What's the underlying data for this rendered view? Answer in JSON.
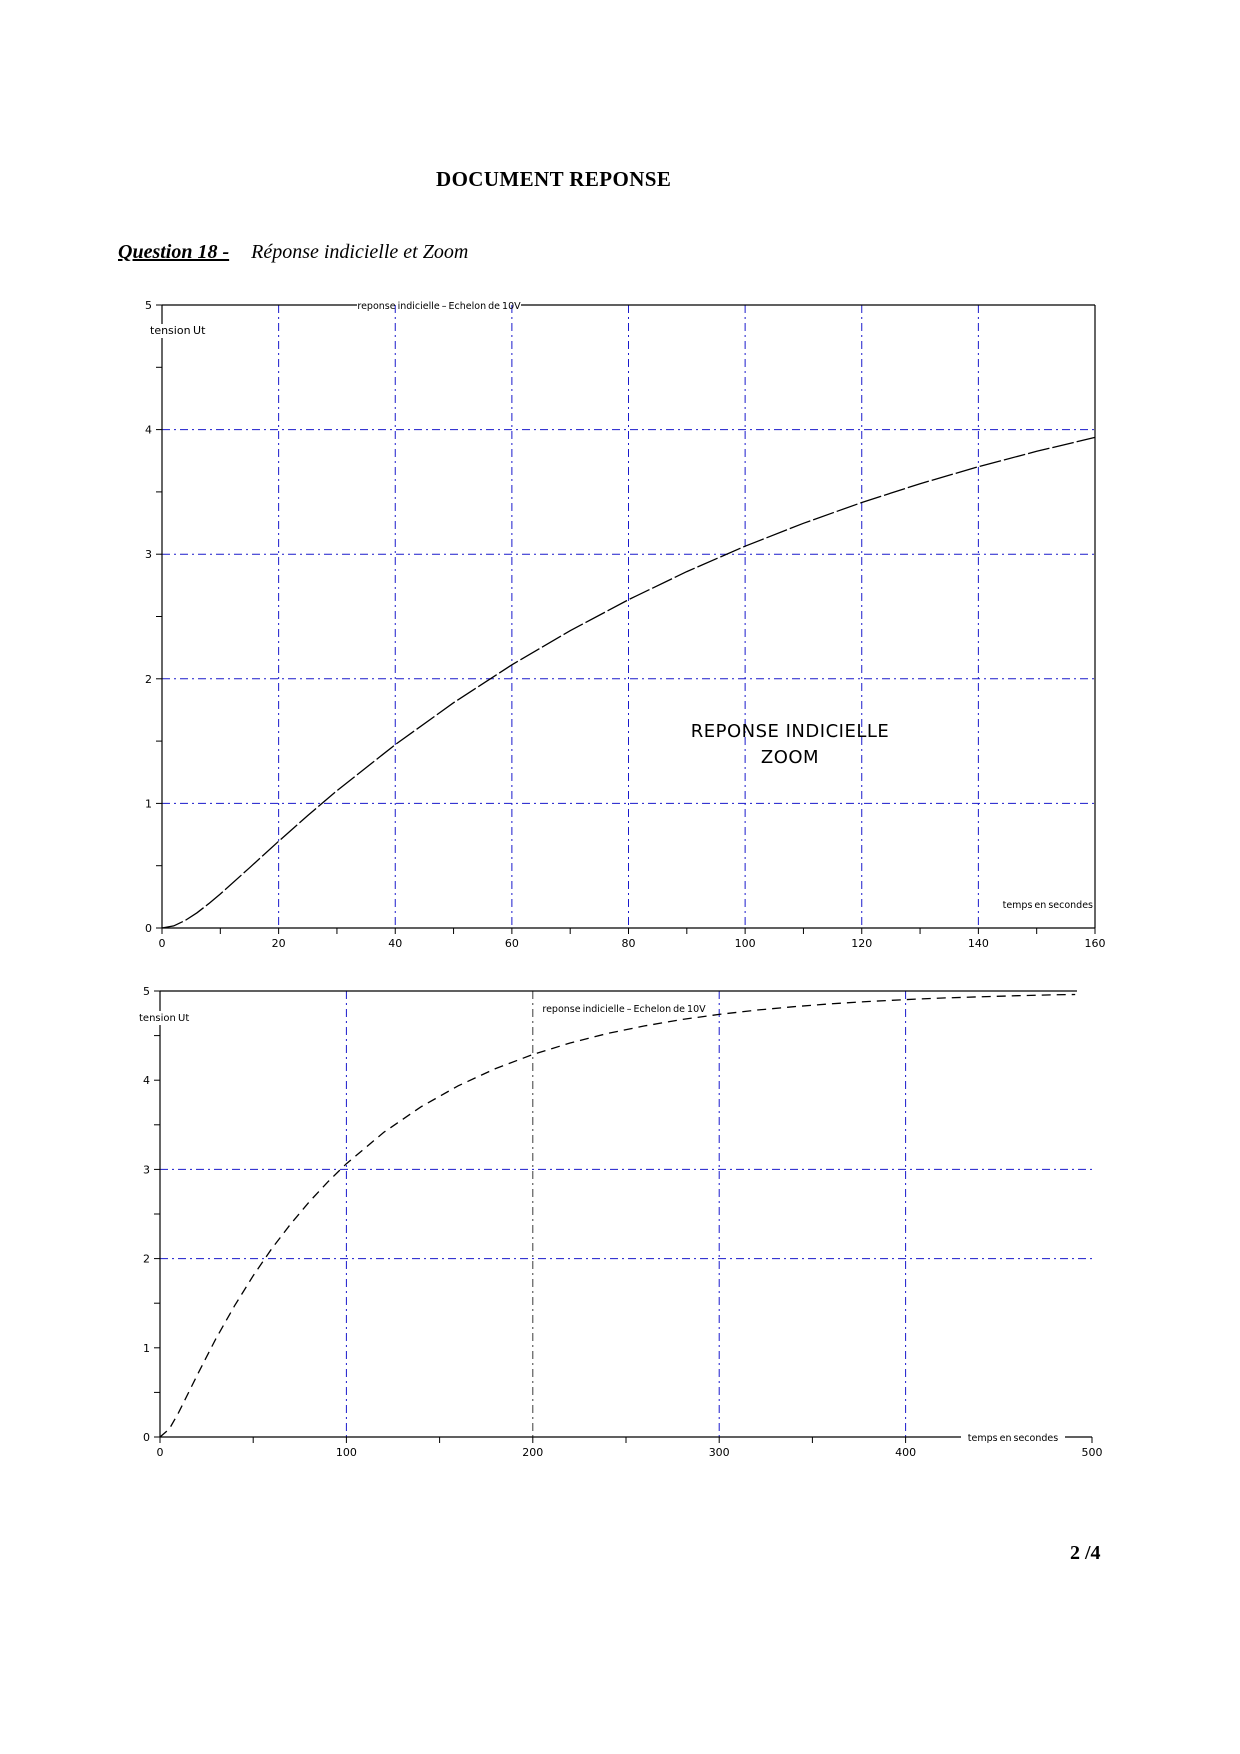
{
  "page": {
    "title": "DOCUMENT REPONSE",
    "question_label": "Question 18 -",
    "question_text": "Réponse indicielle et Zoom",
    "page_number": "2 /4"
  },
  "colors": {
    "grid_blue": "#1a1acc",
    "grid_dark": "#3c3c3c",
    "curve": "#000000"
  },
  "chart_data": [
    {
      "type": "line",
      "title": "reponse indicielle – Echelon de 10V",
      "ylabel": "tension Ut",
      "xlabel": "temps en secondes",
      "annotation_line1": "REPONSE INDICIELLE",
      "annotation_line2": "ZOOM",
      "xlim": [
        0,
        160
      ],
      "ylim": [
        0,
        5
      ],
      "xticks": [
        0,
        20,
        40,
        60,
        80,
        100,
        120,
        140,
        160
      ],
      "yticks": [
        0,
        1,
        2,
        3,
        4,
        5
      ],
      "minor_x_step": 10,
      "minor_y_step": 0.5,
      "grid_x": [
        20,
        40,
        60,
        80,
        100,
        120,
        140
      ],
      "grid_y": [
        1,
        2,
        3,
        4
      ],
      "grid_x_colors": {},
      "series": [
        {
          "name": "Ut",
          "x": [
            0,
            2,
            4,
            6,
            8,
            10,
            15,
            20,
            25,
            30,
            40,
            50,
            60,
            70,
            80,
            90,
            100,
            110,
            120,
            130,
            140,
            150,
            160
          ],
          "y": [
            0,
            0.017,
            0.061,
            0.122,
            0.195,
            0.273,
            0.483,
            0.696,
            0.903,
            1.102,
            1.472,
            1.808,
            2.112,
            2.386,
            2.635,
            2.86,
            3.064,
            3.248,
            3.415,
            3.566,
            3.702,
            3.826,
            3.937
          ]
        }
      ]
    },
    {
      "type": "line",
      "title": "reponse indicielle – Echelon de 10V",
      "ylabel": "tension Ut",
      "xlabel": "temps en secondes",
      "xlim": [
        0,
        500
      ],
      "ylim": [
        0,
        5
      ],
      "xticks": [
        0,
        100,
        200,
        300,
        400,
        500
      ],
      "yticks": [
        0,
        1,
        2,
        3,
        4,
        5
      ],
      "minor_x_step": 50,
      "minor_y_step": 0.5,
      "grid_x": [
        100,
        200,
        300,
        400
      ],
      "grid_y": [
        2,
        3
      ],
      "grid_x_colors": {
        "200": "dark"
      },
      "series": [
        {
          "name": "Ut",
          "x": [
            0,
            5,
            10,
            20,
            30,
            40,
            50,
            60,
            70,
            80,
            90,
            100,
            120,
            140,
            160,
            180,
            200,
            220,
            240,
            260,
            280,
            300,
            320,
            340,
            360,
            380,
            400,
            420,
            440,
            460,
            480,
            491
          ],
          "y": [
            0,
            0.09,
            0.273,
            0.696,
            1.102,
            1.472,
            1.808,
            2.112,
            2.386,
            2.635,
            2.86,
            3.064,
            3.415,
            3.702,
            3.937,
            4.13,
            4.288,
            4.417,
            4.523,
            4.609,
            4.68,
            4.738,
            4.786,
            4.824,
            4.856,
            4.882,
            4.904,
            4.921,
            4.935,
            4.947,
            4.957,
            4.961
          ]
        }
      ]
    }
  ]
}
